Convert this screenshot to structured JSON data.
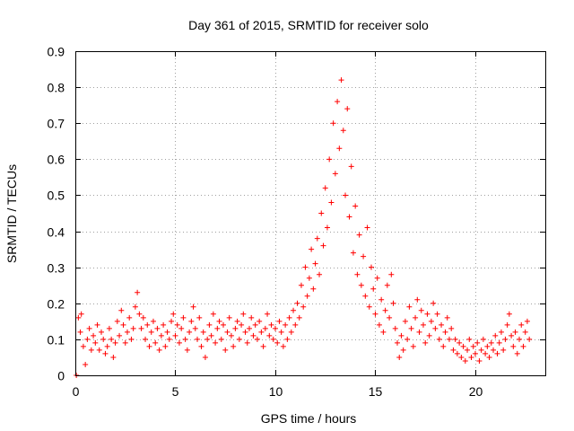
{
  "chart_data": {
    "type": "scatter",
    "title": "Day 361 of 2015, SRMTID for receiver solo",
    "xlabel": "GPS time / hours",
    "ylabel": "SRMTID / TECUs",
    "xlim": [
      0,
      23.5
    ],
    "ylim": [
      0,
      0.9
    ],
    "xticks": [
      0,
      5,
      10,
      15,
      20
    ],
    "yticks": [
      0,
      0.1,
      0.2,
      0.3,
      0.4,
      0.5,
      0.6,
      0.7,
      0.8,
      0.9
    ],
    "grid": true,
    "marker": "plus",
    "color": "#ff0000",
    "series": [
      {
        "name": "SRMTID",
        "points": [
          [
            0.05,
            0.0
          ],
          [
            0.15,
            0.16
          ],
          [
            0.25,
            0.12
          ],
          [
            0.3,
            0.17
          ],
          [
            0.4,
            0.08
          ],
          [
            0.5,
            0.03
          ],
          [
            0.6,
            0.1
          ],
          [
            0.7,
            0.13
          ],
          [
            0.8,
            0.07
          ],
          [
            0.9,
            0.11
          ],
          [
            1.0,
            0.09
          ],
          [
            1.1,
            0.14
          ],
          [
            1.2,
            0.07
          ],
          [
            1.3,
            0.12
          ],
          [
            1.4,
            0.1
          ],
          [
            1.5,
            0.06
          ],
          [
            1.6,
            0.08
          ],
          [
            1.7,
            0.13
          ],
          [
            1.8,
            0.1
          ],
          [
            1.9,
            0.05
          ],
          [
            2.0,
            0.09
          ],
          [
            2.1,
            0.15
          ],
          [
            2.2,
            0.11
          ],
          [
            2.3,
            0.18
          ],
          [
            2.4,
            0.14
          ],
          [
            2.5,
            0.09
          ],
          [
            2.6,
            0.12
          ],
          [
            2.7,
            0.16
          ],
          [
            2.8,
            0.1
          ],
          [
            2.9,
            0.13
          ],
          [
            3.0,
            0.19
          ],
          [
            3.1,
            0.23
          ],
          [
            3.2,
            0.17
          ],
          [
            3.3,
            0.13
          ],
          [
            3.4,
            0.16
          ],
          [
            3.5,
            0.1
          ],
          [
            3.6,
            0.14
          ],
          [
            3.7,
            0.08
          ],
          [
            3.8,
            0.12
          ],
          [
            3.9,
            0.15
          ],
          [
            4.0,
            0.09
          ],
          [
            4.1,
            0.13
          ],
          [
            4.2,
            0.07
          ],
          [
            4.3,
            0.11
          ],
          [
            4.4,
            0.14
          ],
          [
            4.5,
            0.08
          ],
          [
            4.6,
            0.12
          ],
          [
            4.7,
            0.1
          ],
          [
            4.8,
            0.15
          ],
          [
            4.9,
            0.17
          ],
          [
            5.0,
            0.11
          ],
          [
            5.1,
            0.14
          ],
          [
            5.2,
            0.09
          ],
          [
            5.3,
            0.13
          ],
          [
            5.4,
            0.16
          ],
          [
            5.5,
            0.1
          ],
          [
            5.6,
            0.07
          ],
          [
            5.7,
            0.12
          ],
          [
            5.8,
            0.15
          ],
          [
            5.9,
            0.19
          ],
          [
            6.0,
            0.13
          ],
          [
            6.1,
            0.1
          ],
          [
            6.2,
            0.16
          ],
          [
            6.3,
            0.08
          ],
          [
            6.4,
            0.12
          ],
          [
            6.5,
            0.05
          ],
          [
            6.6,
            0.1
          ],
          [
            6.7,
            0.14
          ],
          [
            6.8,
            0.11
          ],
          [
            6.9,
            0.17
          ],
          [
            7.0,
            0.09
          ],
          [
            7.1,
            0.13
          ],
          [
            7.2,
            0.15
          ],
          [
            7.3,
            0.1
          ],
          [
            7.4,
            0.14
          ],
          [
            7.5,
            0.07
          ],
          [
            7.6,
            0.12
          ],
          [
            7.7,
            0.16
          ],
          [
            7.8,
            0.11
          ],
          [
            7.9,
            0.08
          ],
          [
            8.0,
            0.13
          ],
          [
            8.1,
            0.15
          ],
          [
            8.2,
            0.1
          ],
          [
            8.3,
            0.14
          ],
          [
            8.4,
            0.17
          ],
          [
            8.5,
            0.12
          ],
          [
            8.6,
            0.09
          ],
          [
            8.7,
            0.13
          ],
          [
            8.8,
            0.16
          ],
          [
            8.9,
            0.11
          ],
          [
            9.0,
            0.14
          ],
          [
            9.1,
            0.1
          ],
          [
            9.2,
            0.15
          ],
          [
            9.3,
            0.12
          ],
          [
            9.4,
            0.08
          ],
          [
            9.5,
            0.13
          ],
          [
            9.6,
            0.17
          ],
          [
            9.7,
            0.11
          ],
          [
            9.8,
            0.14
          ],
          [
            9.9,
            0.1
          ],
          [
            10.0,
            0.13
          ],
          [
            10.1,
            0.09
          ],
          [
            10.2,
            0.15
          ],
          [
            10.3,
            0.12
          ],
          [
            10.4,
            0.08
          ],
          [
            10.5,
            0.14
          ],
          [
            10.6,
            0.1
          ],
          [
            10.7,
            0.16
          ],
          [
            10.8,
            0.12
          ],
          [
            10.9,
            0.18
          ],
          [
            11.0,
            0.14
          ],
          [
            11.1,
            0.2
          ],
          [
            11.2,
            0.16
          ],
          [
            11.3,
            0.25
          ],
          [
            11.4,
            0.19
          ],
          [
            11.5,
            0.3
          ],
          [
            11.6,
            0.22
          ],
          [
            11.7,
            0.27
          ],
          [
            11.8,
            0.35
          ],
          [
            11.9,
            0.24
          ],
          [
            12.0,
            0.31
          ],
          [
            12.1,
            0.38
          ],
          [
            12.2,
            0.28
          ],
          [
            12.3,
            0.45
          ],
          [
            12.4,
            0.36
          ],
          [
            12.5,
            0.52
          ],
          [
            12.6,
            0.41
          ],
          [
            12.7,
            0.6
          ],
          [
            12.8,
            0.48
          ],
          [
            12.9,
            0.7
          ],
          [
            13.0,
            0.56
          ],
          [
            13.1,
            0.76
          ],
          [
            13.2,
            0.63
          ],
          [
            13.3,
            0.82
          ],
          [
            13.4,
            0.68
          ],
          [
            13.5,
            0.5
          ],
          [
            13.6,
            0.74
          ],
          [
            13.7,
            0.44
          ],
          [
            13.8,
            0.58
          ],
          [
            13.9,
            0.34
          ],
          [
            14.0,
            0.47
          ],
          [
            14.1,
            0.28
          ],
          [
            14.2,
            0.39
          ],
          [
            14.3,
            0.25
          ],
          [
            14.4,
            0.33
          ],
          [
            14.5,
            0.22
          ],
          [
            14.6,
            0.41
          ],
          [
            14.7,
            0.19
          ],
          [
            14.8,
            0.3
          ],
          [
            14.9,
            0.24
          ],
          [
            15.0,
            0.17
          ],
          [
            15.1,
            0.27
          ],
          [
            15.2,
            0.14
          ],
          [
            15.3,
            0.21
          ],
          [
            15.4,
            0.12
          ],
          [
            15.5,
            0.18
          ],
          [
            15.6,
            0.25
          ],
          [
            15.7,
            0.16
          ],
          [
            15.8,
            0.28
          ],
          [
            15.9,
            0.2
          ],
          [
            16.0,
            0.13
          ],
          [
            16.1,
            0.09
          ],
          [
            16.2,
            0.05
          ],
          [
            16.3,
            0.11
          ],
          [
            16.4,
            0.07
          ],
          [
            16.5,
            0.15
          ],
          [
            16.6,
            0.1
          ],
          [
            16.7,
            0.19
          ],
          [
            16.8,
            0.13
          ],
          [
            16.9,
            0.08
          ],
          [
            17.0,
            0.16
          ],
          [
            17.1,
            0.21
          ],
          [
            17.2,
            0.12
          ],
          [
            17.3,
            0.18
          ],
          [
            17.4,
            0.14
          ],
          [
            17.5,
            0.09
          ],
          [
            17.6,
            0.17
          ],
          [
            17.7,
            0.11
          ],
          [
            17.8,
            0.15
          ],
          [
            17.9,
            0.2
          ],
          [
            18.0,
            0.13
          ],
          [
            18.1,
            0.17
          ],
          [
            18.2,
            0.1
          ],
          [
            18.3,
            0.14
          ],
          [
            18.4,
            0.08
          ],
          [
            18.5,
            0.12
          ],
          [
            18.6,
            0.16
          ],
          [
            18.7,
            0.1
          ],
          [
            18.8,
            0.13
          ],
          [
            18.9,
            0.07
          ],
          [
            19.0,
            0.1
          ],
          [
            19.1,
            0.06
          ],
          [
            19.2,
            0.09
          ],
          [
            19.3,
            0.05
          ],
          [
            19.4,
            0.08
          ],
          [
            19.5,
            0.04
          ],
          [
            19.6,
            0.07
          ],
          [
            19.7,
            0.1
          ],
          [
            19.8,
            0.05
          ],
          [
            19.9,
            0.08
          ],
          [
            20.0,
            0.06
          ],
          [
            20.1,
            0.09
          ],
          [
            20.2,
            0.04
          ],
          [
            20.3,
            0.07
          ],
          [
            20.4,
            0.1
          ],
          [
            20.5,
            0.06
          ],
          [
            20.6,
            0.08
          ],
          [
            20.7,
            0.05
          ],
          [
            20.8,
            0.09
          ],
          [
            20.9,
            0.07
          ],
          [
            21.0,
            0.11
          ],
          [
            21.1,
            0.06
          ],
          [
            21.2,
            0.09
          ],
          [
            21.3,
            0.12
          ],
          [
            21.4,
            0.07
          ],
          [
            21.5,
            0.1
          ],
          [
            21.6,
            0.14
          ],
          [
            21.7,
            0.17
          ],
          [
            21.8,
            0.11
          ],
          [
            21.9,
            0.08
          ],
          [
            22.0,
            0.12
          ],
          [
            22.1,
            0.06
          ],
          [
            22.2,
            0.1
          ],
          [
            22.3,
            0.14
          ],
          [
            22.4,
            0.08
          ],
          [
            22.5,
            0.12
          ],
          [
            22.6,
            0.15
          ],
          [
            22.7,
            0.1
          ]
        ]
      }
    ]
  }
}
